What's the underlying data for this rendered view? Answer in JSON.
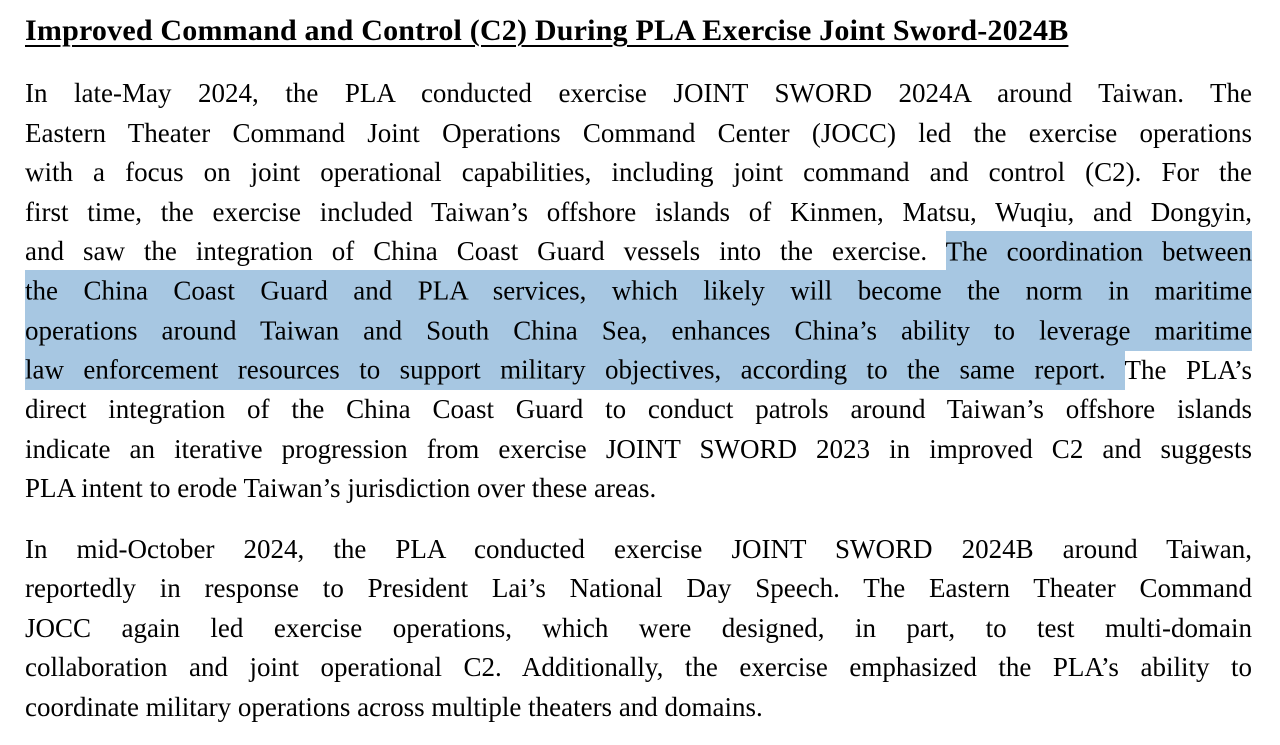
{
  "page": {
    "background_color": "#ffffff",
    "text_color": "#000000",
    "highlight_color": "#a7c7e2"
  },
  "document": {
    "heading": "Improved Command and Control (C2) During PLA Exercise Joint Sword-2024B",
    "paragraphs": [
      {
        "lines": [
          {
            "segments": [
              {
                "text": "In late-May 2024, the PLA conducted exercise JOINT SWORD 2024A around Taiwan. The",
                "highlight": false
              }
            ]
          },
          {
            "segments": [
              {
                "text": "Eastern Theater Command Joint Operations Command Center (JOCC) led the exercise operations",
                "highlight": false
              }
            ]
          },
          {
            "segments": [
              {
                "text": "with a focus on joint operational capabilities, including joint command and control (C2). For the",
                "highlight": false
              }
            ]
          },
          {
            "segments": [
              {
                "text": "first time, the exercise included Taiwan’s offshore islands of Kinmen, Matsu, Wuqiu, and Dongyin,",
                "highlight": false
              }
            ]
          },
          {
            "segments": [
              {
                "text": "and saw the integration of China Coast Guard vessels into the exercise. ",
                "highlight": false
              },
              {
                "text": "The coordination between",
                "highlight": true
              }
            ]
          },
          {
            "segments": [
              {
                "text": "the China Coast Guard and PLA services, which likely will become the norm in maritime",
                "highlight": true
              }
            ]
          },
          {
            "segments": [
              {
                "text": "operations around Taiwan and South China Sea, enhances China’s ability to leverage maritime",
                "highlight": true
              }
            ]
          },
          {
            "segments": [
              {
                "text": "law enforcement resources to support military objectives, according to the same report. ",
                "highlight": true
              },
              {
                "text": "The PLA’s",
                "highlight": false
              }
            ]
          },
          {
            "segments": [
              {
                "text": "direct integration of the China Coast Guard to conduct patrols around Taiwan’s offshore islands",
                "highlight": false
              }
            ]
          },
          {
            "segments": [
              {
                "text": "indicate an iterative progression from exercise JOINT SWORD 2023 in improved C2 and suggests",
                "highlight": false
              }
            ]
          },
          {
            "segments": [
              {
                "text": "PLA intent to erode Taiwan’s jurisdiction over these areas.",
                "highlight": false
              }
            ]
          }
        ]
      },
      {
        "lines": [
          {
            "segments": [
              {
                "text": "In mid-October 2024, the PLA conducted exercise JOINT SWORD 2024B around Taiwan,",
                "highlight": false
              }
            ]
          },
          {
            "segments": [
              {
                "text": "reportedly in response to President Lai’s National Day Speech. The Eastern Theater Command",
                "highlight": false
              }
            ]
          },
          {
            "segments": [
              {
                "text": "JOCC again led exercise operations, which were designed, in part, to test multi-domain",
                "highlight": false
              }
            ]
          },
          {
            "segments": [
              {
                "text": "collaboration and joint operational C2. Additionally, the exercise emphasized the PLA’s ability to",
                "highlight": false
              }
            ]
          },
          {
            "segments": [
              {
                "text": "coordinate military operations across multiple theaters and domains.",
                "highlight": false
              }
            ]
          }
        ]
      }
    ]
  }
}
